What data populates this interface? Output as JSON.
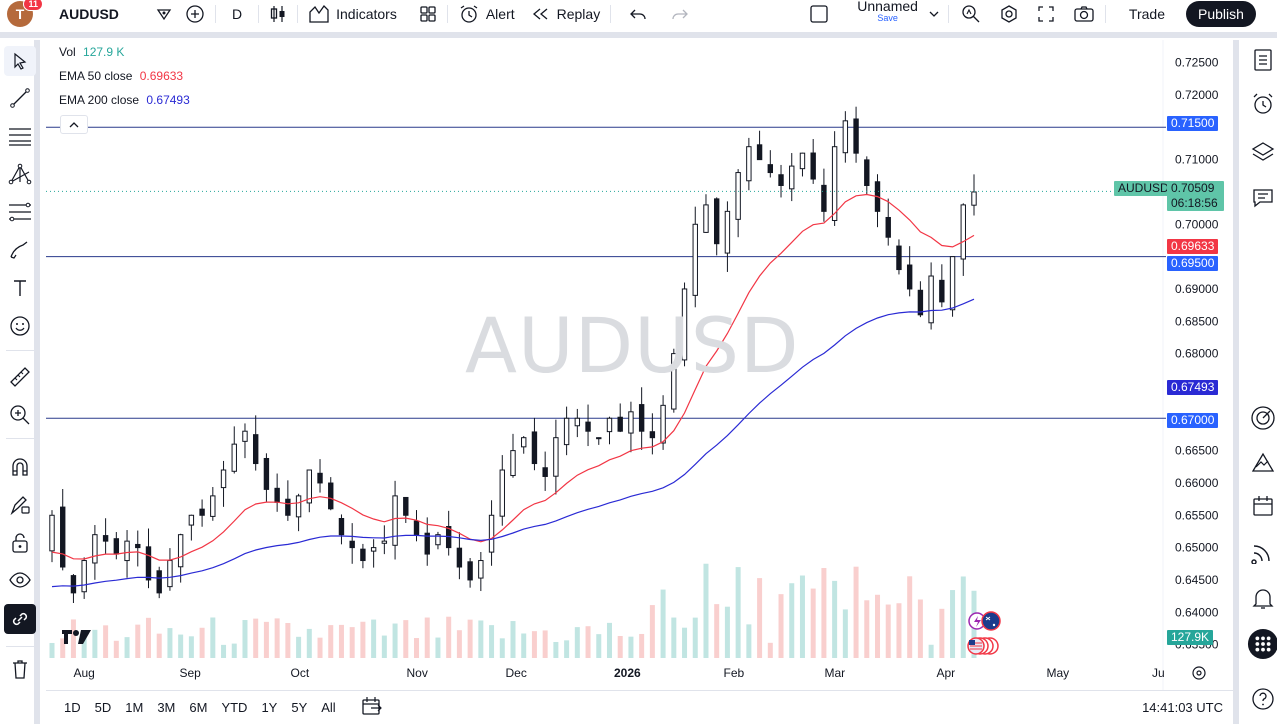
{
  "topbar": {
    "avatar_letter": "T",
    "avatar_badge": "11",
    "symbol": "AUDUSD",
    "interval": "D",
    "indicators_label": "Indicators",
    "alert_label": "Alert",
    "replay_label": "Replay",
    "layout_name": "Unnamed",
    "layout_save": "Save",
    "trade_label": "Trade",
    "publish_label": "Publish"
  },
  "legend": {
    "vol_label": "Vol",
    "vol_value": "127.9 K",
    "ema50_label": "EMA 50 close",
    "ema50_value": "0.69633",
    "ema200_label": "EMA 200 close",
    "ema200_value": "0.67493"
  },
  "watermark": "AUDUSD",
  "price_axis": {
    "ticks": [
      "0.72500",
      "0.72000",
      "0.71000",
      "0.70000",
      "0.69000",
      "0.68500",
      "0.68000",
      "0.66500",
      "0.66000",
      "0.65500",
      "0.65000",
      "0.64500",
      "0.64000",
      "0.63500"
    ],
    "tags": {
      "hline_upper": "0.71500",
      "symbol_name": "AUDUSD",
      "last_price": "0.70509",
      "countdown": "06:18:56",
      "ema50": "0.69633",
      "hline_mid": "0.69500",
      "ema200": "0.67493",
      "hline_lower": "0.67000",
      "volume": "127.9K"
    }
  },
  "time_axis": {
    "labels": [
      "Aug",
      "Sep",
      "Oct",
      "Nov",
      "Dec",
      "2026",
      "Feb",
      "Mar",
      "Apr",
      "May",
      "Ju"
    ]
  },
  "bottombar": {
    "ranges": [
      "1D",
      "5D",
      "1M",
      "3M",
      "6M",
      "YTD",
      "1Y",
      "5Y",
      "All"
    ],
    "clock": "14:41:03 UTC"
  },
  "colors": {
    "up": "#26a69a",
    "down": "#ef5350",
    "ema50": "#f23645",
    "ema200": "#2a2ad4",
    "hline": "#2962ff",
    "last": "#5fc5a8"
  },
  "chart_data": {
    "type": "candlestick",
    "symbol": "AUDUSD",
    "timeframe": "D",
    "y_range": [
      0.632,
      0.7285
    ],
    "x_range": [
      "Jul 25",
      "Jun 1"
    ],
    "horizontal_lines": [
      0.715,
      0.695,
      0.67
    ],
    "last_price": 0.70509,
    "ema50_last": 0.69633,
    "ema200_last": 0.67493,
    "volume_last": "127.9K",
    "close_path": [
      {
        "month": "Aug",
        "approx_close": [
          0.655,
          0.647,
          0.643,
          0.648,
          0.652,
          0.651,
          0.649,
          0.651,
          0.65,
          0.645,
          0.643,
          0.648,
          0.652,
          0.655
        ]
      },
      {
        "month": "Sep",
        "approx_close": [
          0.655,
          0.658,
          0.662,
          0.666,
          0.668,
          0.663,
          0.659,
          0.657,
          0.655
        ]
      },
      {
        "month": "Oct",
        "approx_close": [
          0.658,
          0.662,
          0.66,
          0.656,
          0.652,
          0.65,
          0.648,
          0.65,
          0.651
        ]
      },
      {
        "month": "Nov",
        "approx_close": [
          0.658,
          0.655,
          0.652,
          0.649,
          0.652,
          0.65,
          0.647,
          0.645,
          0.648
        ]
      },
      {
        "month": "Dec",
        "approx_close": [
          0.655,
          0.662,
          0.665,
          0.667,
          0.663,
          0.661,
          0.667,
          0.67,
          0.67,
          0.668,
          0.667
        ]
      },
      {
        "month": "Jan",
        "approx_close": [
          0.67,
          0.668,
          0.671,
          0.668,
          0.667,
          0.672,
          0.68,
          0.69,
          0.7,
          0.703
        ]
      },
      {
        "month": "Feb",
        "approx_close": [
          0.697,
          0.702,
          0.708,
          0.712,
          0.71,
          0.708,
          0.706,
          0.709,
          0.711
        ]
      },
      {
        "month": "Mar",
        "approx_close": [
          0.707,
          0.702,
          0.712,
          0.716,
          0.711,
          0.706,
          0.702,
          0.698,
          0.693
        ]
      },
      {
        "month": "Apr",
        "approx_close": [
          0.69,
          0.686,
          0.692,
          0.688,
          0.695,
          0.703,
          0.705
        ]
      }
    ]
  }
}
